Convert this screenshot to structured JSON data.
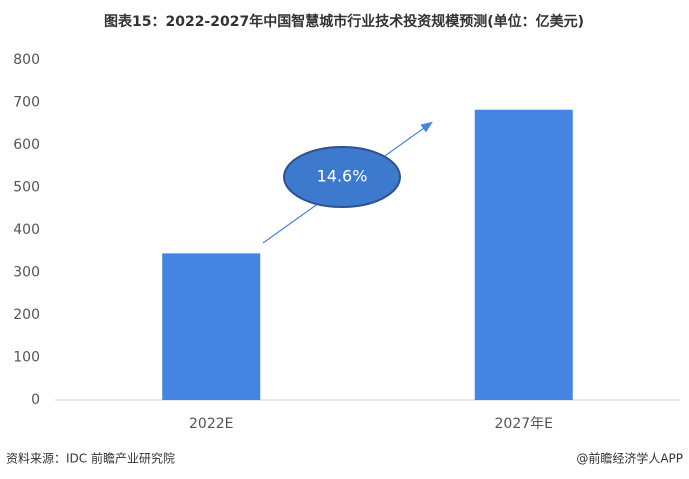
{
  "chart_data": {
    "type": "bar",
    "title": "图表15：2022-2027年中国智慧城市行业技术投资规模预测(单位：亿美元)",
    "categories": [
      "2022E",
      "2027年E"
    ],
    "values": [
      345,
      683
    ],
    "color": "#4485e3",
    "ylim": [
      0,
      800
    ],
    "yticks": [
      0,
      100,
      200,
      300,
      400,
      500,
      600,
      700,
      800
    ],
    "grid": false,
    "annotation": "14.6%",
    "source": "资料来源：IDC 前瞻产业研究院",
    "credit": "@前瞻经济学人APP"
  }
}
